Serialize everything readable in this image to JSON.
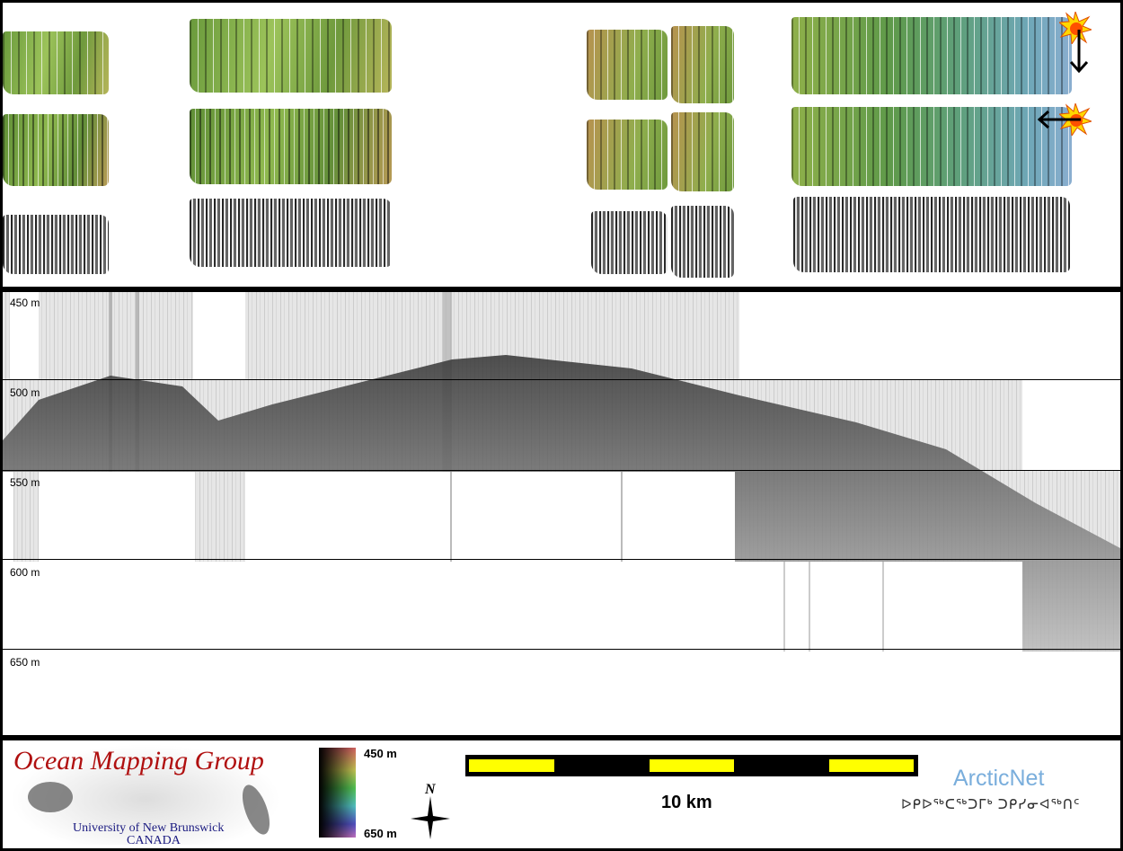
{
  "profile": {
    "depth_labels": [
      "450 m",
      "500 m",
      "550 m",
      "600 m",
      "650 m"
    ]
  },
  "legend": {
    "logo_title": "Ocean Mapping Group",
    "logo_university": "University of New Brunswick",
    "logo_country": "CANADA",
    "colorbar_top": "450 m",
    "colorbar_bottom": "650 m",
    "north_label": "N",
    "scale_label": "10 km",
    "arcticnet_name": "ArcticNet",
    "arcticnet_inuktitut": "ᐅᑭᐅᖅᑕᖅᑐᒥᒃ ᑐᑭᓯᓂᐊᖅᑎᑦ"
  },
  "colors": {
    "scale_yellow": "#ffff00",
    "logo_red": "#b01010",
    "logo_blue": "#1a1a80",
    "arcticnet_blue": "#7aaedc"
  }
}
